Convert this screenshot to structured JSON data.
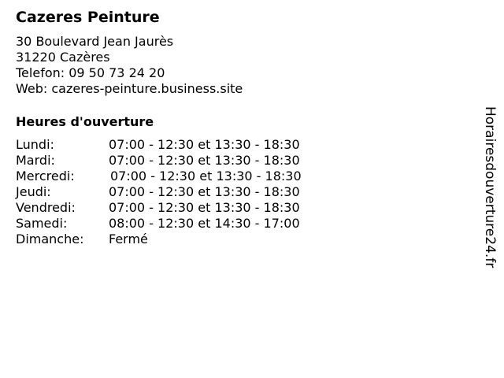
{
  "business": {
    "name": "Cazeres Peinture",
    "street": "30 Boulevard Jean Jaurès",
    "city": "31220 Cazères",
    "phone": "Telefon: 09 50 73 24 20",
    "web": "Web: cazeres-peinture.business.site"
  },
  "hours": {
    "heading": "Heures d'ouverture",
    "days": [
      {
        "day": "Lundi:",
        "time": "07:00 - 12:30 et 13:30 - 18:30"
      },
      {
        "day": "Mardi:",
        "time": "07:00 - 12:30 et 13:30 - 18:30"
      },
      {
        "day": "Mercredi:",
        "time": "07:00 - 12:30 et 13:30 - 18:30"
      },
      {
        "day": "Jeudi:",
        "time": "07:00 - 12:30 et 13:30 - 18:30"
      },
      {
        "day": "Vendredi:",
        "time": "07:00 - 12:30 et 13:30 - 18:30"
      },
      {
        "day": "Samedi:",
        "time": "08:00 - 12:30 et 14:30 - 17:00"
      },
      {
        "day": "Dimanche:",
        "time": "Fermé"
      }
    ]
  },
  "watermark": "Horairesdouverture24.fr"
}
